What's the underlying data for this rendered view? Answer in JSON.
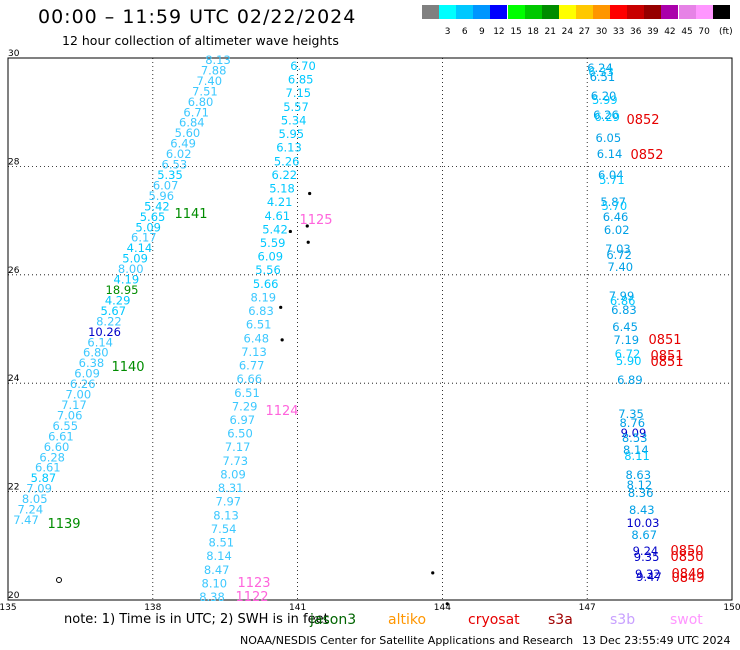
{
  "header": {
    "title": "00:00 – 11:59 UTC 02/22/2024",
    "subtitle": "12 hour collection of altimeter wave heights"
  },
  "colorbar": {
    "unit_label": "(ft)",
    "bins": [
      {
        "color": "#808080",
        "label": ""
      },
      {
        "color": "#00ffff",
        "label": "3"
      },
      {
        "color": "#00c8ff",
        "label": "6"
      },
      {
        "color": "#0096ff",
        "label": "9"
      },
      {
        "color": "#0000ff",
        "label": "12"
      },
      {
        "color": "#00ff00",
        "label": "15"
      },
      {
        "color": "#00c800",
        "label": "18"
      },
      {
        "color": "#008c00",
        "label": "21"
      },
      {
        "color": "#ffff00",
        "label": "24"
      },
      {
        "color": "#ffc800",
        "label": "27"
      },
      {
        "color": "#ff9600",
        "label": "30"
      },
      {
        "color": "#ff0000",
        "label": "33"
      },
      {
        "color": "#c80000",
        "label": "36"
      },
      {
        "color": "#960000",
        "label": "39"
      },
      {
        "color": "#aa00aa",
        "label": "42"
      },
      {
        "color": "#e682e6",
        "label": "45"
      },
      {
        "color": "#ff96ff",
        "label": "70"
      },
      {
        "color": "#000000",
        "label": ""
      }
    ]
  },
  "map": {
    "lon_range": [
      135,
      150
    ],
    "lat_range": [
      20,
      30
    ],
    "lon_ticks": [
      "135",
      "138",
      "141",
      "144",
      "147",
      "150"
    ],
    "lat_ticks": [
      "20",
      "22",
      "24",
      "26",
      "28",
      "30"
    ],
    "colors": {
      "lt": "#3cc8ff",
      "cy": "#00c8ff",
      "dk": "#00a0e6",
      "bl": "#0000c8",
      "gr": "#008c00",
      "lg": "#00c800",
      "rd": "#e60000",
      "pk": "#ff64dc"
    },
    "track_a": [
      {
        "t": "8.13",
        "c": "lt"
      },
      {
        "t": "7.88",
        "c": "lt"
      },
      {
        "t": "7.40",
        "c": "lt"
      },
      {
        "t": "7.51",
        "c": "lt"
      },
      {
        "t": "6.80",
        "c": "lt"
      },
      {
        "t": "6.71",
        "c": "lt"
      },
      {
        "t": "6.84",
        "c": "lt"
      },
      {
        "t": "5.60",
        "c": "lt"
      },
      {
        "t": "6.49",
        "c": "lt"
      },
      {
        "t": "6.02",
        "c": "lt"
      },
      {
        "t": "6.53",
        "c": "lt"
      },
      {
        "t": "5.35",
        "c": "cy"
      },
      {
        "t": "6.07",
        "c": "lt"
      },
      {
        "t": "5.96",
        "c": "lt"
      },
      {
        "t": "5.42",
        "c": "cy"
      },
      {
        "t": "5.65",
        "c": "cy"
      },
      {
        "t": "5.09",
        "c": "cy"
      },
      {
        "t": "6.17",
        "c": "lt"
      },
      {
        "t": "4.14",
        "c": "cy"
      },
      {
        "t": "5.09",
        "c": "cy"
      },
      {
        "t": "8.00",
        "c": "lt"
      },
      {
        "t": "4.19",
        "c": "cy"
      },
      {
        "t": "18.95",
        "c": "gr"
      },
      {
        "t": "4.29",
        "c": "cy"
      },
      {
        "t": "5.67",
        "c": "cy"
      },
      {
        "t": "8.22",
        "c": "lt"
      },
      {
        "t": "10.26",
        "c": "bl"
      },
      {
        "t": "6.14",
        "c": "lt"
      },
      {
        "t": "6.80",
        "c": "lt"
      },
      {
        "t": "6.38",
        "c": "lt"
      },
      {
        "t": "6.09",
        "c": "lt"
      },
      {
        "t": "6.26",
        "c": "lt"
      },
      {
        "t": "7.00",
        "c": "lt"
      },
      {
        "t": "7.17",
        "c": "lt"
      },
      {
        "t": "7.06",
        "c": "lt"
      },
      {
        "t": "6.55",
        "c": "lt"
      },
      {
        "t": "6.61",
        "c": "lt"
      },
      {
        "t": "6.60",
        "c": "lt"
      },
      {
        "t": "6.28",
        "c": "lt"
      },
      {
        "t": "6.61",
        "c": "lt"
      },
      {
        "t": "5.87",
        "c": "cy"
      },
      {
        "t": "7.09",
        "c": "lt"
      },
      {
        "t": "8.05",
        "c": "lt"
      },
      {
        "t": "7.24",
        "c": "lt"
      },
      {
        "t": "7.47",
        "c": "lt"
      }
    ],
    "track_a_times": [
      {
        "t": "1141",
        "c": "gr"
      },
      {
        "t": "1140",
        "c": "gr"
      },
      {
        "t": "1139",
        "c": "gr"
      }
    ],
    "track_b": [
      {
        "t": "6.70",
        "c": "cy"
      },
      {
        "t": "6.85",
        "c": "cy"
      },
      {
        "t": "7.15",
        "c": "cy"
      },
      {
        "t": "5.57",
        "c": "cy"
      },
      {
        "t": "5.34",
        "c": "cy"
      },
      {
        "t": "5.95",
        "c": "cy"
      },
      {
        "t": "6.13",
        "c": "cy"
      },
      {
        "t": "5.26",
        "c": "cy"
      },
      {
        "t": "6.22",
        "c": "cy"
      },
      {
        "t": "5.18",
        "c": "cy"
      },
      {
        "t": "4.21",
        "c": "cy"
      },
      {
        "t": "4.61",
        "c": "cy"
      },
      {
        "t": "5.42",
        "c": "cy"
      },
      {
        "t": "5.59",
        "c": "cy"
      },
      {
        "t": "6.09",
        "c": "cy"
      },
      {
        "t": "5.56",
        "c": "cy"
      },
      {
        "t": "5.66",
        "c": "cy"
      },
      {
        "t": "8.19",
        "c": "lt"
      },
      {
        "t": "6.83",
        "c": "lt"
      },
      {
        "t": "6.51",
        "c": "lt"
      },
      {
        "t": "6.48",
        "c": "lt"
      },
      {
        "t": "7.13",
        "c": "lt"
      },
      {
        "t": "6.77",
        "c": "lt"
      },
      {
        "t": "6.66",
        "c": "lt"
      },
      {
        "t": "6.51",
        "c": "lt"
      },
      {
        "t": "7.29",
        "c": "lt"
      },
      {
        "t": "6.97",
        "c": "lt"
      },
      {
        "t": "6.50",
        "c": "lt"
      },
      {
        "t": "7.17",
        "c": "lt"
      },
      {
        "t": "7.73",
        "c": "lt"
      },
      {
        "t": "8.09",
        "c": "lt"
      },
      {
        "t": "8.31",
        "c": "lt"
      },
      {
        "t": "7.97",
        "c": "lt"
      },
      {
        "t": "8.13",
        "c": "lt"
      },
      {
        "t": "7.54",
        "c": "lt"
      },
      {
        "t": "8.51",
        "c": "lt"
      },
      {
        "t": "8.14",
        "c": "lt"
      },
      {
        "t": "8.47",
        "c": "lt"
      },
      {
        "t": "8.10",
        "c": "lt"
      },
      {
        "t": "8.38",
        "c": "lt"
      }
    ],
    "track_b_times": [
      {
        "t": "1125",
        "c": "pk"
      },
      {
        "t": "1124",
        "c": "pk"
      },
      {
        "t": "1123",
        "c": "pk"
      },
      {
        "t": "1122",
        "c": "pk"
      }
    ],
    "track_c": [
      {
        "t": "6.24",
        "c": "dk"
      },
      {
        "t": "6.33",
        "c": "cy"
      },
      {
        "t": "6.51",
        "c": "dk"
      },
      {
        "t": "6.20",
        "c": "dk"
      },
      {
        "t": "5.99",
        "c": "cy"
      },
      {
        "t": "6.26",
        "c": "dk"
      },
      {
        "t": "6.29",
        "c": "cy"
      },
      {
        "t": "6.05",
        "c": "dk"
      },
      {
        "t": "6.14",
        "c": "dk"
      },
      {
        "t": "6.04",
        "c": "dk"
      },
      {
        "t": "5.71",
        "c": "cy"
      },
      {
        "t": "5.87",
        "c": "dk"
      },
      {
        "t": "5.70",
        "c": "cy"
      },
      {
        "t": "6.46",
        "c": "dk"
      },
      {
        "t": "6.02",
        "c": "dk"
      },
      {
        "t": "7.03",
        "c": "dk"
      },
      {
        "t": "6.72",
        "c": "dk"
      },
      {
        "t": "7.40",
        "c": "dk"
      },
      {
        "t": "7.99",
        "c": "dk"
      },
      {
        "t": "6.86",
        "c": "cy"
      },
      {
        "t": "6.83",
        "c": "dk"
      },
      {
        "t": "6.45",
        "c": "dk"
      },
      {
        "t": "7.19",
        "c": "dk"
      },
      {
        "t": "6.72",
        "c": "cy"
      },
      {
        "t": "5.90",
        "c": "cy"
      },
      {
        "t": "6.89",
        "c": "dk"
      },
      {
        "t": "7.35",
        "c": "dk"
      },
      {
        "t": "8.76",
        "c": "dk"
      },
      {
        "t": "9.09",
        "c": "bl"
      },
      {
        "t": "8.53",
        "c": "dk"
      },
      {
        "t": "8.14",
        "c": "dk"
      },
      {
        "t": "8.11",
        "c": "cy"
      },
      {
        "t": "8.63",
        "c": "dk"
      },
      {
        "t": "8.12",
        "c": "dk"
      },
      {
        "t": "8.36",
        "c": "dk"
      },
      {
        "t": "8.43",
        "c": "dk"
      },
      {
        "t": "10.03",
        "c": "bl"
      },
      {
        "t": "8.67",
        "c": "dk"
      },
      {
        "t": "9.24",
        "c": "bl"
      },
      {
        "t": "9.35",
        "c": "bl"
      },
      {
        "t": "9.32",
        "c": "bl"
      },
      {
        "t": "9.47",
        "c": "bl"
      }
    ],
    "track_c_times": [
      {
        "t": "0852",
        "c": "rd"
      },
      {
        "t": "0852",
        "c": "rd"
      },
      {
        "t": "0851",
        "c": "rd"
      },
      {
        "t": "0851",
        "c": "rd"
      },
      {
        "t": "0851",
        "c": "rd"
      },
      {
        "t": "0850",
        "c": "rd"
      },
      {
        "t": "0850",
        "c": "rd"
      },
      {
        "t": "0849",
        "c": "rd"
      },
      {
        "t": "0849",
        "c": "rd"
      }
    ]
  },
  "footer": {
    "note": "note: 1) Time is in UTC; 2) SWH is in feet",
    "legend": [
      {
        "name": "jason3",
        "color": "#006400"
      },
      {
        "name": "altiko",
        "color": "#ff9600"
      },
      {
        "name": "cryosat",
        "color": "#e60000"
      },
      {
        "name": "s3a",
        "color": "#a00000"
      },
      {
        "name": "s3b",
        "color": "#c8a0ff"
      },
      {
        "name": "swot",
        "color": "#ff96ff"
      }
    ],
    "credit": "NOAA/NESDIS Center for Satellite Applications and Research",
    "timestamp": "13 Dec 23:55:49 UTC 2024"
  }
}
